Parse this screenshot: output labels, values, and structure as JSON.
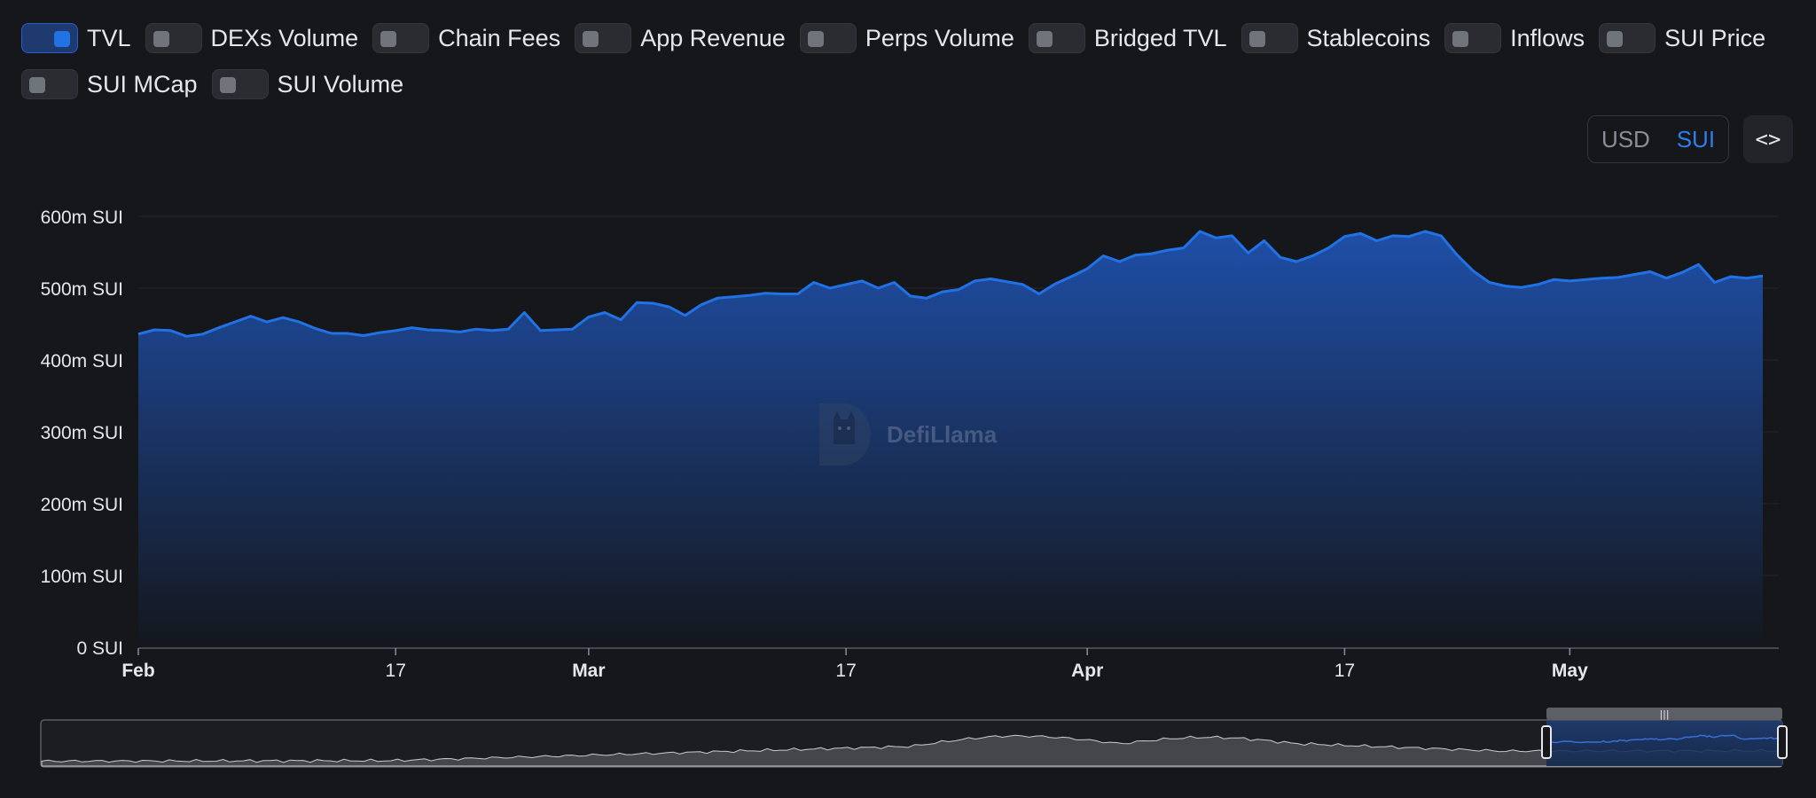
{
  "toggles": [
    {
      "label": "TVL",
      "on": true
    },
    {
      "label": "DEXs Volume",
      "on": false
    },
    {
      "label": "Chain Fees",
      "on": false
    },
    {
      "label": "App Revenue",
      "on": false
    },
    {
      "label": "Perps Volume",
      "on": false
    },
    {
      "label": "Bridged TVL",
      "on": false
    },
    {
      "label": "Stablecoins",
      "on": false
    },
    {
      "label": "Inflows",
      "on": false
    },
    {
      "label": "SUI Price",
      "on": false
    },
    {
      "label": "SUI MCap",
      "on": false
    },
    {
      "label": "SUI Volume",
      "on": false
    }
  ],
  "denomination": {
    "usd": "USD",
    "sui": "SUI",
    "active": "SUI"
  },
  "embed_label": "<>",
  "watermark": {
    "text": "DefiLlama",
    "icon": "defillama-logo-icon"
  },
  "colors": {
    "line": "#2172e5",
    "area_top": "#1f4fa8",
    "area_bottom": "#14171d",
    "background": "#16171a"
  },
  "chart_data": {
    "type": "area",
    "title": "",
    "xlabel": "",
    "ylabel": "",
    "ylim": [
      0,
      600
    ],
    "y_unit": "m SUI",
    "y_ticks": [
      "0 SUI",
      "100m SUI",
      "200m SUI",
      "300m SUI",
      "400m SUI",
      "500m SUI",
      "600m SUI"
    ],
    "x_ticks": [
      {
        "label": "Feb",
        "bold": true,
        "index": 0
      },
      {
        "label": "17",
        "bold": false,
        "index": 16
      },
      {
        "label": "Mar",
        "bold": true,
        "index": 28
      },
      {
        "label": "17",
        "bold": false,
        "index": 44
      },
      {
        "label": "Apr",
        "bold": true,
        "index": 59
      },
      {
        "label": "17",
        "bold": false,
        "index": 75
      },
      {
        "label": "May",
        "bold": true,
        "index": 89
      }
    ],
    "grid": true,
    "legend": "none",
    "series": [
      {
        "name": "TVL",
        "values": [
          436,
          442,
          441,
          433,
          436,
          445,
          453,
          461,
          453,
          459,
          453,
          444,
          437,
          437,
          434,
          438,
          441,
          445,
          442,
          441,
          439,
          443,
          441,
          443,
          466,
          441,
          442,
          443,
          460,
          466,
          456,
          480,
          479,
          474,
          462,
          477,
          486,
          488,
          490,
          493,
          492,
          492,
          508,
          500,
          505,
          510,
          500,
          508,
          489,
          486,
          495,
          498,
          510,
          513,
          509,
          505,
          492,
          506,
          516,
          527,
          545,
          537,
          546,
          548,
          553,
          556,
          579,
          570,
          573,
          549,
          566,
          543,
          537,
          545,
          556,
          572,
          576,
          566,
          573,
          572,
          579,
          573,
          546,
          524,
          508,
          503,
          501,
          505,
          512,
          510,
          512,
          514,
          515,
          519,
          523,
          514,
          522,
          533,
          508,
          516,
          514,
          517
        ]
      }
    ]
  },
  "minimap": {
    "selection": "last segment"
  }
}
